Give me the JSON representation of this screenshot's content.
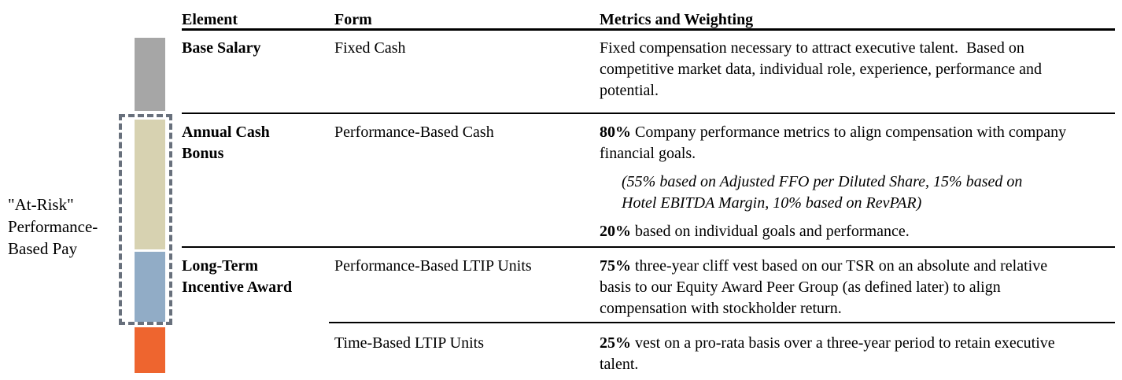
{
  "at_risk_label": "\"At-Risk\"\nPerformance-\nBased Pay",
  "bar": {
    "dash_box_color": "#68707C",
    "segments": [
      {
        "name": "base-salary",
        "color": "#A6A6A6"
      },
      {
        "name": "annual-cash-bonus",
        "color": "#D7D2B1"
      },
      {
        "name": "long-term-incentive-performance",
        "color": "#91ACC6"
      },
      {
        "name": "long-term-incentive-time",
        "color": "#EE652F"
      }
    ]
  },
  "table": {
    "headers": {
      "element": "Element",
      "form": "Form",
      "metrics": "Metrics and Weighting"
    },
    "rows": [
      {
        "element": "Base Salary",
        "form": "Fixed Cash",
        "metrics": [
          {
            "t": "Fixed compensation necessary to attract executive talent.  Based on\ncompetitive market data, individual role, experience, performance and\npotential."
          }
        ]
      },
      {
        "element": "Annual Cash\nBonus",
        "form": "Performance-Based Cash",
        "metrics": [
          {
            "b": "80%",
            "t": " Company performance metrics to align compensation with company\nfinancial goals."
          },
          {
            "i": "(55% based on Adjusted FFO per Diluted Share, 15% based on\nHotel EBITDA Margin, 10% based on RevPAR)"
          },
          {
            "b": "20%",
            "t": " based on individual goals and performance."
          }
        ]
      },
      {
        "element": "Long-Term\nIncentive Award",
        "form": "Performance-Based LTIP Units",
        "metrics": [
          {
            "b": "75%",
            "t": " three-year cliff vest based on our TSR on an absolute and relative\nbasis to our Equity Award Peer Group (as defined later) to align\ncompensation with stockholder return."
          }
        ]
      },
      {
        "element": "",
        "form": "Time-Based LTIP Units",
        "metrics": [
          {
            "b": "25%",
            "t": " vest on a pro-rata basis over a three-year period to retain executive\ntalent."
          }
        ]
      }
    ]
  }
}
